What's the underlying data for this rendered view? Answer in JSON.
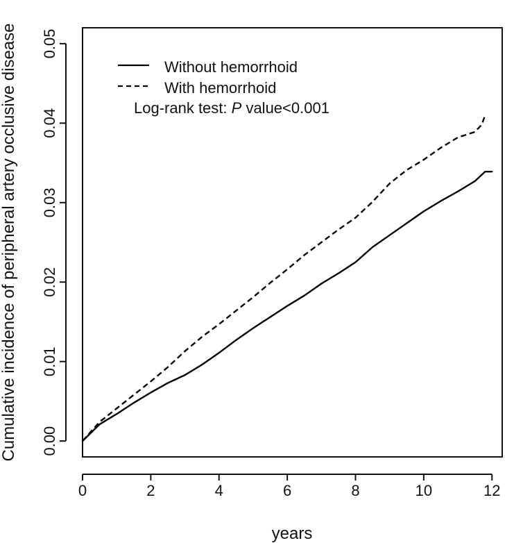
{
  "chart_data": {
    "type": "line",
    "title": "",
    "xlabel": "years",
    "ylabel": "Cumulative incidence of peripheral artery occlusive disease",
    "xlim": [
      0,
      12.3
    ],
    "ylim": [
      -0.002,
      0.052
    ],
    "x_ticks": [
      0,
      2,
      4,
      6,
      8,
      10,
      12
    ],
    "x_tick_labels": [
      "0",
      "2",
      "4",
      "6",
      "8",
      "10",
      "12"
    ],
    "y_ticks": [
      0,
      0.01,
      0.02,
      0.03,
      0.04,
      0.05
    ],
    "y_tick_labels": [
      "0.00",
      "0.01",
      "0.02",
      "0.03",
      "0.04",
      "0.05"
    ],
    "grid": false,
    "legend": {
      "position": "top-left",
      "entries": [
        {
          "label": "Without hemorrhoid",
          "line_style": "solid"
        },
        {
          "label": "With hemorrhoid",
          "line_style": "dashed"
        }
      ]
    },
    "annotation": {
      "prefix": "Log-rank test: ",
      "italic": "P",
      "suffix": " value<0.001"
    },
    "series": [
      {
        "name": "Without hemorrhoid",
        "line_style": "solid",
        "color": "#000000",
        "x": [
          0,
          0.5,
          1,
          1.5,
          2,
          2.5,
          3,
          3.5,
          4,
          4.5,
          5,
          5.5,
          6,
          6.5,
          7,
          7.5,
          8,
          8.5,
          9,
          9.5,
          10,
          10.5,
          11,
          11.5,
          11.8,
          12
        ],
        "y": [
          0,
          0.0021,
          0.0034,
          0.0048,
          0.0061,
          0.0073,
          0.0083,
          0.0096,
          0.0111,
          0.0127,
          0.0142,
          0.0156,
          0.017,
          0.0183,
          0.0198,
          0.0211,
          0.0225,
          0.0244,
          0.0259,
          0.0274,
          0.0289,
          0.0302,
          0.0314,
          0.0327,
          0.0339,
          0.0339
        ]
      },
      {
        "name": "With hemorrhoid",
        "line_style": "dashed",
        "color": "#000000",
        "x": [
          0,
          0.5,
          1,
          1.5,
          2,
          2.5,
          3,
          3.5,
          4,
          4.5,
          5,
          5.5,
          6,
          6.5,
          7,
          7.5,
          8,
          8.5,
          9,
          9.5,
          10,
          10.5,
          11,
          11.5,
          11.7,
          11.8
        ],
        "y": [
          0,
          0.0024,
          0.0041,
          0.0058,
          0.0075,
          0.0093,
          0.0113,
          0.0131,
          0.0147,
          0.0164,
          0.0181,
          0.0199,
          0.0216,
          0.0234,
          0.025,
          0.0266,
          0.0281,
          0.0301,
          0.0324,
          0.0341,
          0.0354,
          0.0369,
          0.0382,
          0.0389,
          0.0398,
          0.041
        ]
      }
    ]
  }
}
